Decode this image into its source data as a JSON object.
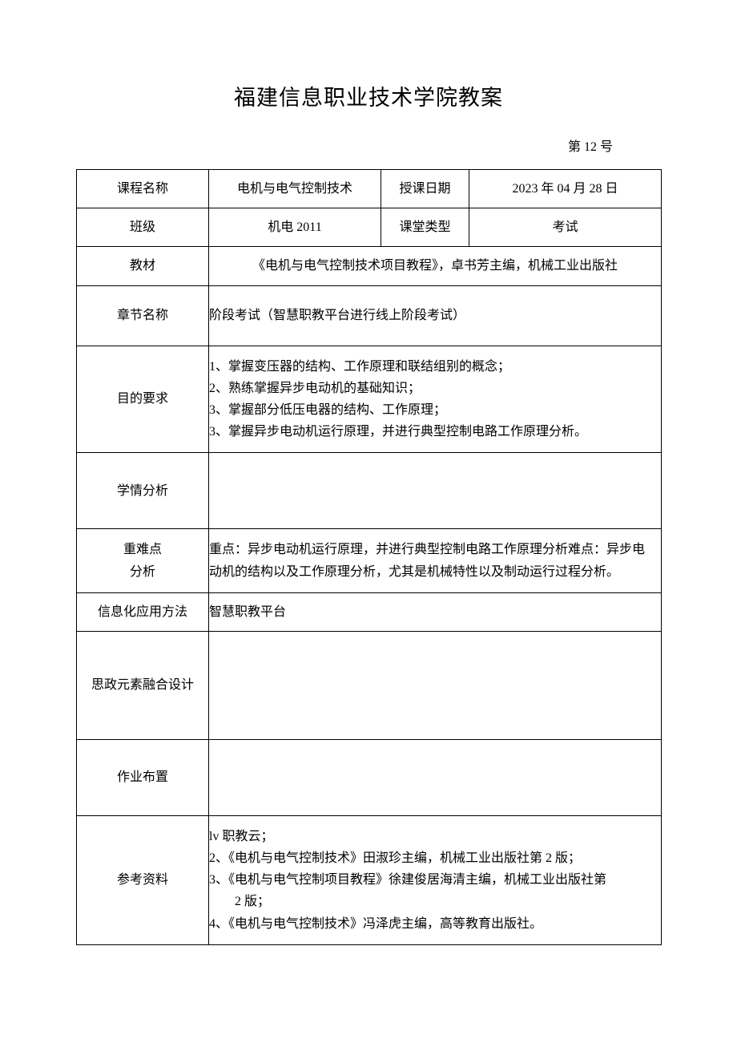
{
  "title": "福建信息职业技术学院教案",
  "doc_number": "第 12 号",
  "rows": {
    "course_name": {
      "label": "课程名称",
      "value": "电机与电气控制技术"
    },
    "teach_date": {
      "label": "授课日期",
      "value": "2023 年 04 月 28 日"
    },
    "class": {
      "label": "班级",
      "value": "机电 2011"
    },
    "class_type": {
      "label": "课堂类型",
      "value": "考试"
    },
    "textbook": {
      "label": "教材",
      "value": "《电机与电气控制技术项目教程》，卓书芳主编，机械工业出版社"
    },
    "chapter": {
      "label": "章节名称",
      "value": "阶段考试（智慧职教平台进行线上阶段考试）"
    },
    "objectives": {
      "label": "目的要求",
      "value": "1、掌握变压器的结构、工作原理和联结组别的概念；\n2、熟练掌握异步电动机的基础知识；\n3、掌握部分低压电器的结构、工作原理；\n3、掌握异步电动机运行原理，并进行典型控制电路工作原理分析。"
    },
    "student_analysis": {
      "label": "学情分析",
      "value": ""
    },
    "key_points": {
      "label": "重难点\n分析",
      "value": "重点：异步电动机运行原理，并进行典型控制电路工作原理分析难点：异步电动机的结构以及工作原理分析，尤其是机械特性以及制动运行过程分析。"
    },
    "info_method": {
      "label": "信息化应用方法",
      "value": "智慧职教平台"
    },
    "ideological": {
      "label": "思政元素融合设计",
      "value": ""
    },
    "homework": {
      "label": "作业布置",
      "value": ""
    },
    "references": {
      "label": "参考资料",
      "value": "lv 职教云；\n2、《电机与电气控制技术》田淑珍主编，机械工业出版社第 2 版；\n3、《电机与电气控制项目教程》徐建俊居海清主编，机械工业出版社第\n　　2 版；\n4、《电机与电气控制技术》冯泽虎主编，高等教育出版社。"
    }
  }
}
